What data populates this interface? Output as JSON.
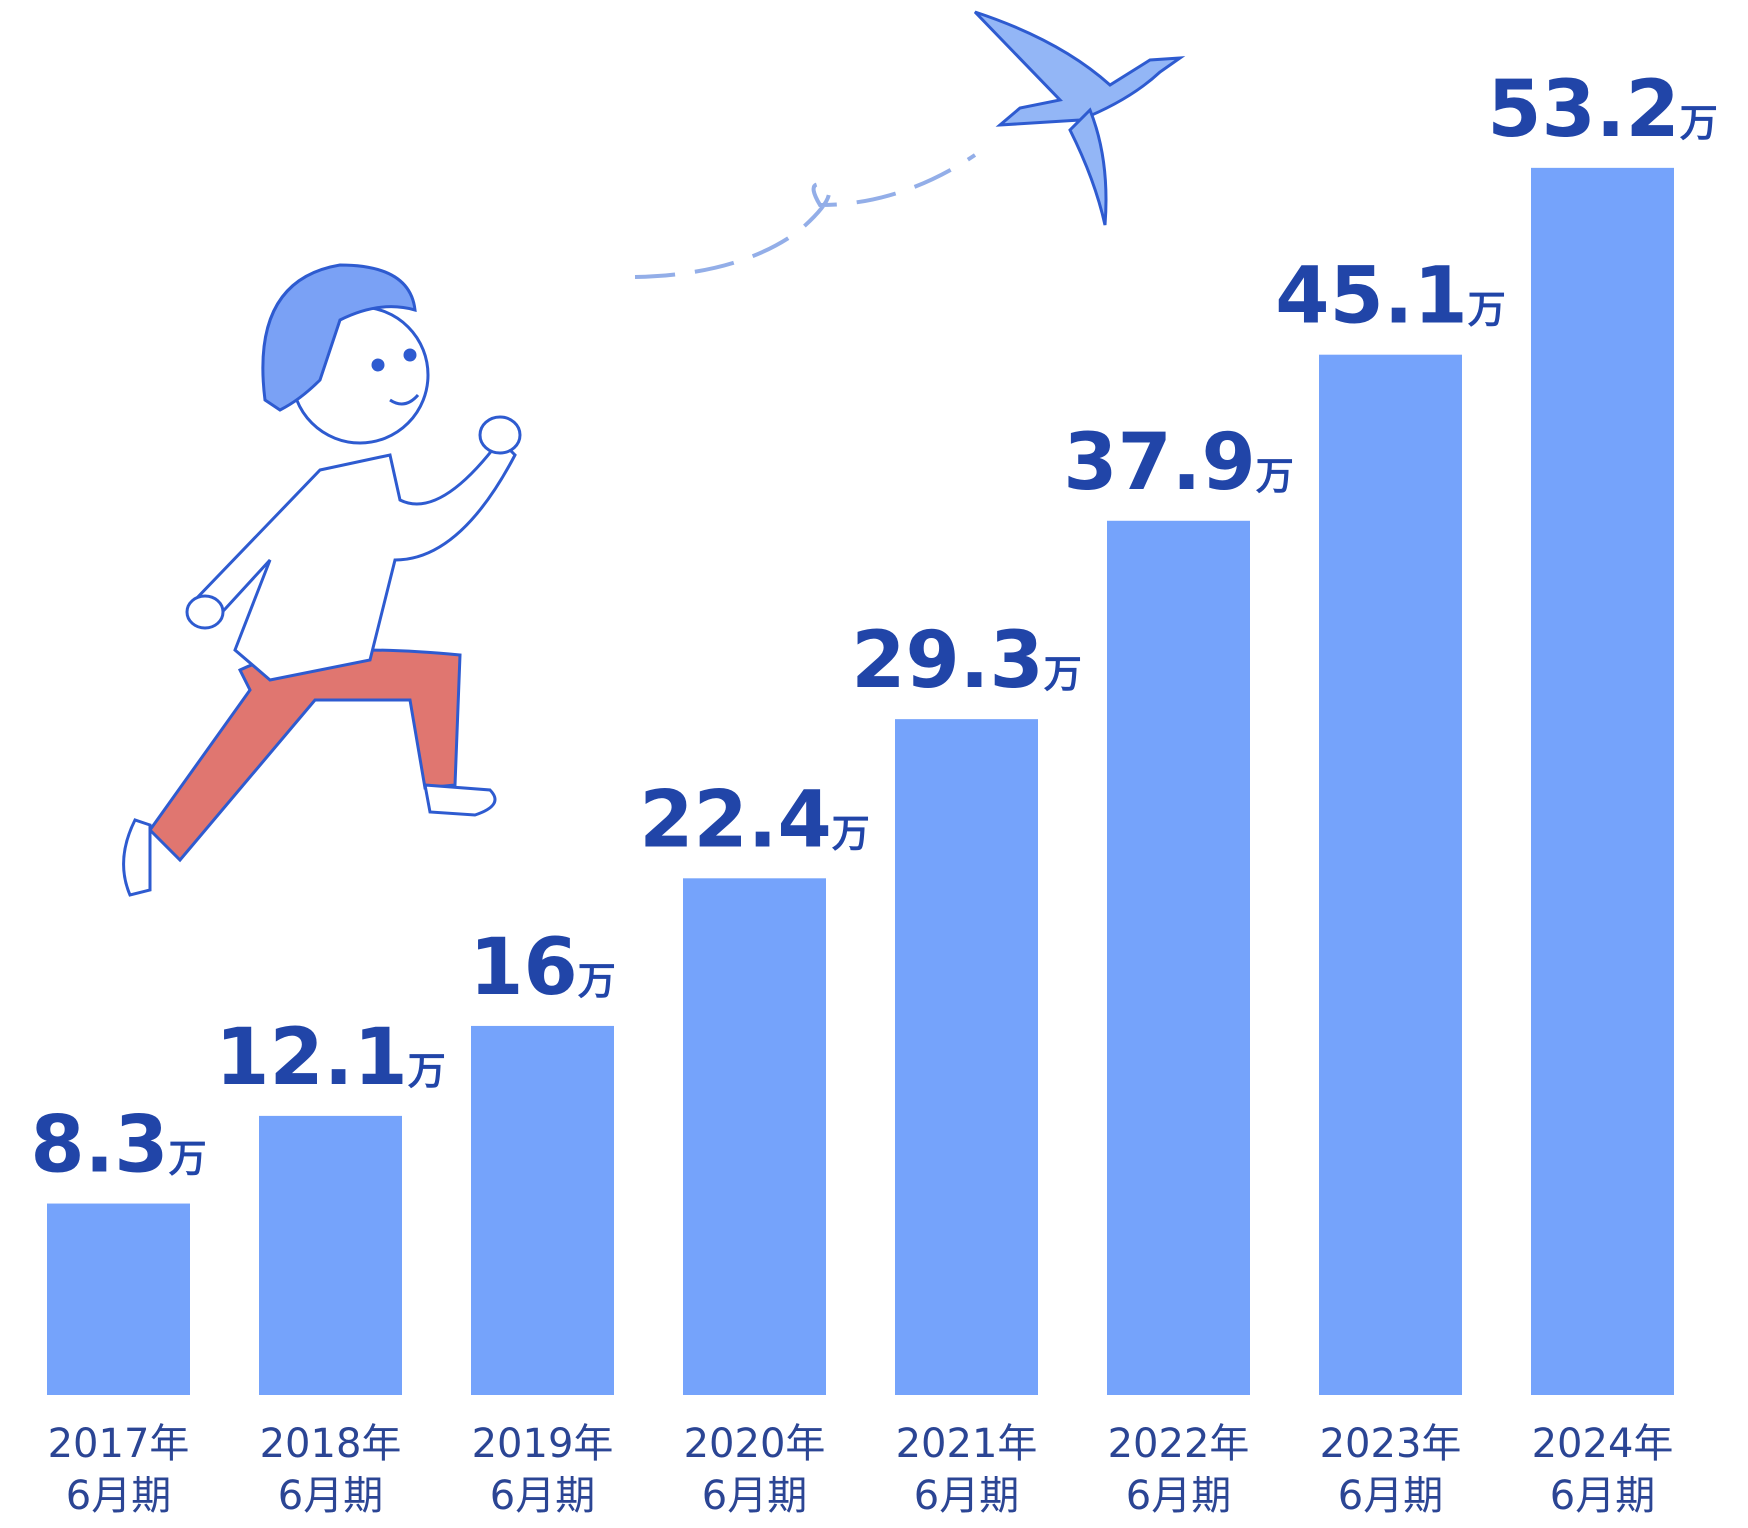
{
  "chart_data": {
    "type": "bar",
    "categories": [
      [
        "2017年",
        "6月期"
      ],
      [
        "2018年",
        "6月期"
      ],
      [
        "2019年",
        "6月期"
      ],
      [
        "2020年",
        "6月期"
      ],
      [
        "2021年",
        "6月期"
      ],
      [
        "2022年",
        "6月期"
      ],
      [
        "2023年",
        "6月期"
      ],
      [
        "2024年",
        "6月期"
      ]
    ],
    "values": [
      8.3,
      12.1,
      16,
      22.4,
      29.3,
      37.9,
      45.1,
      53.2
    ],
    "value_labels": [
      "8.3万",
      "12.1万",
      "16万",
      "22.4万",
      "29.3万",
      "37.9万",
      "45.1万",
      "53.2万"
    ],
    "color": "#75a3fb",
    "label_color": "#2145a8",
    "ylim": [
      0,
      60
    ],
    "grid": false
  }
}
